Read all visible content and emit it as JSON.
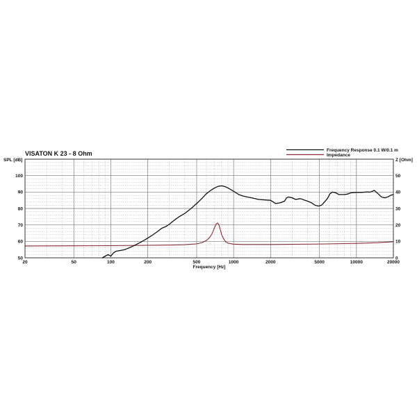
{
  "chart_data": {
    "type": "line",
    "title": "VISATON K 23 - 8 Ohm",
    "xlabel": "Frequency [Hz]",
    "ylabel_left": "SPL [dB]",
    "ylabel_right": "Z [Ohm]",
    "x_scale": "log",
    "xlim": [
      20,
      20000
    ],
    "ylim_left": [
      50,
      110
    ],
    "ylim_right": [
      0,
      60
    ],
    "x_ticks": [
      20,
      50,
      100,
      200,
      500,
      1000,
      2000,
      5000,
      10000,
      20000
    ],
    "x_tick_labels": [
      "20",
      "50",
      "100",
      "200",
      "500",
      "1000",
      "2000",
      "5000",
      "10000",
      "20000"
    ],
    "y_ticks_left": [
      50,
      60,
      70,
      80,
      90,
      100
    ],
    "y_tick_labels_left": [
      "50",
      "60",
      "70",
      "80",
      "90",
      "100"
    ],
    "y_ticks_right": [
      0,
      10,
      20,
      30,
      40,
      50
    ],
    "y_tick_labels_right": [
      "0",
      "10",
      "20",
      "30",
      "40",
      "50"
    ],
    "grid": true,
    "legend_position": "top-right",
    "series": [
      {
        "name": "Frequency Response 0.1 W/0.1 m",
        "axis": "left",
        "color": "#111111",
        "x": [
          85,
          90,
          95,
          100,
          105,
          110,
          120,
          130,
          140,
          150,
          160,
          170,
          180,
          190,
          200,
          220,
          240,
          260,
          280,
          300,
          330,
          360,
          400,
          450,
          500,
          550,
          600,
          650,
          700,
          750,
          800,
          850,
          900,
          1000,
          1100,
          1200,
          1400,
          1600,
          1800,
          2000,
          2200,
          2400,
          2600,
          2700,
          2800,
          3000,
          3200,
          3500,
          3800,
          4000,
          4300,
          4600,
          4900,
          5200,
          5500,
          5800,
          6100,
          6400,
          6800,
          7200,
          7600,
          8000,
          8500,
          9000,
          10000,
          11000,
          12000,
          13000,
          14000,
          15000,
          16000,
          17000,
          18000,
          19000,
          20000
        ],
        "y": [
          50,
          51,
          52,
          51,
          53,
          54,
          54.5,
          55,
          56,
          57,
          58,
          59,
          60,
          61,
          62,
          64,
          66,
          68,
          69,
          70.5,
          73,
          75,
          77,
          80,
          83,
          86,
          89,
          91,
          92.5,
          93.5,
          93.8,
          93.3,
          92.5,
          90.5,
          88.5,
          87.5,
          86.5,
          85.5,
          85.2,
          85,
          83,
          83.5,
          84.5,
          86.5,
          87,
          86.5,
          85.5,
          86,
          85,
          84.5,
          83.5,
          82,
          81.5,
          82,
          84,
          86,
          89,
          90,
          89.5,
          88.5,
          88.5,
          88.5,
          88.8,
          89.5,
          89.8,
          89.8,
          90,
          90,
          91,
          89,
          87,
          86.5,
          87,
          88,
          88.5
        ]
      },
      {
        "name": "Impedance",
        "axis": "right",
        "color": "#8a2a33",
        "x": [
          20,
          50,
          100,
          200,
          300,
          400,
          500,
          550,
          600,
          640,
          670,
          700,
          720,
          740,
          760,
          780,
          800,
          830,
          860,
          900,
          1000,
          1200,
          2000,
          5000,
          10000,
          15000,
          20000
        ],
        "y": [
          7.2,
          7.3,
          7.4,
          7.6,
          7.8,
          8,
          8.5,
          9.2,
          10.5,
          12.5,
          15,
          18.5,
          20.5,
          21.2,
          20,
          17,
          14,
          11.5,
          9.8,
          8.9,
          8.3,
          8.1,
          8.1,
          8.4,
          8.8,
          9.2,
          9.8
        ]
      }
    ]
  }
}
